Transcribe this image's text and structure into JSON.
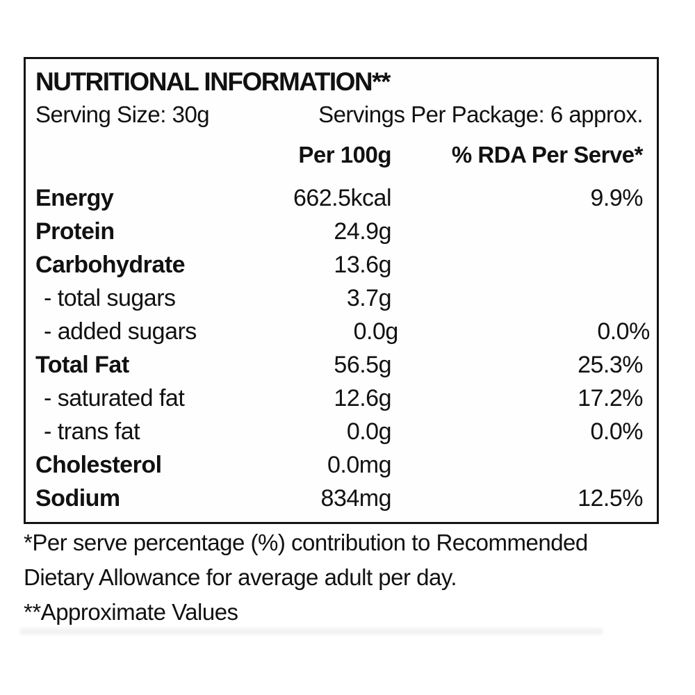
{
  "label": {
    "title": "NUTRITIONAL INFORMATION**",
    "serving_size": "Serving Size: 30g",
    "servings_per_package": "Servings Per Package: 6 approx.",
    "columns": {
      "per_100g": "Per 100g",
      "rda_per_serve": "% RDA Per Serve*"
    },
    "rows": [
      {
        "name": "Energy",
        "per100g": "662.5kcal",
        "rda": "9.9%"
      },
      {
        "name": "Protein",
        "per100g": "24.9g",
        "rda": ""
      },
      {
        "name": "Carbohydrate",
        "per100g": "13.6g",
        "rda": ""
      },
      {
        "name": "- total sugars",
        "per100g": "3.7g",
        "rda": ""
      },
      {
        "name": "- added sugars",
        "per100g": "0.0g",
        "rda": "0.0%"
      },
      {
        "name": "Total Fat",
        "per100g": "56.5g",
        "rda": "25.3%"
      },
      {
        "name": "- saturated fat",
        "per100g": "12.6g",
        "rda": "17.2%"
      },
      {
        "name": "- trans fat",
        "per100g": "0.0g",
        "rda": "0.0%"
      },
      {
        "name": "Cholesterol",
        "per100g": "0.0mg",
        "rda": ""
      },
      {
        "name": "Sodium",
        "per100g": "834mg",
        "rda": "12.5%"
      }
    ],
    "footnotes": {
      "per_serve": "*Per serve percentage (%) contribution to Recommended Dietary Allowance for average adult per day.",
      "approximate": "**Approximate Values"
    },
    "colors": {
      "text": "#111111",
      "border": "#141414",
      "background": "#ffffff"
    }
  }
}
